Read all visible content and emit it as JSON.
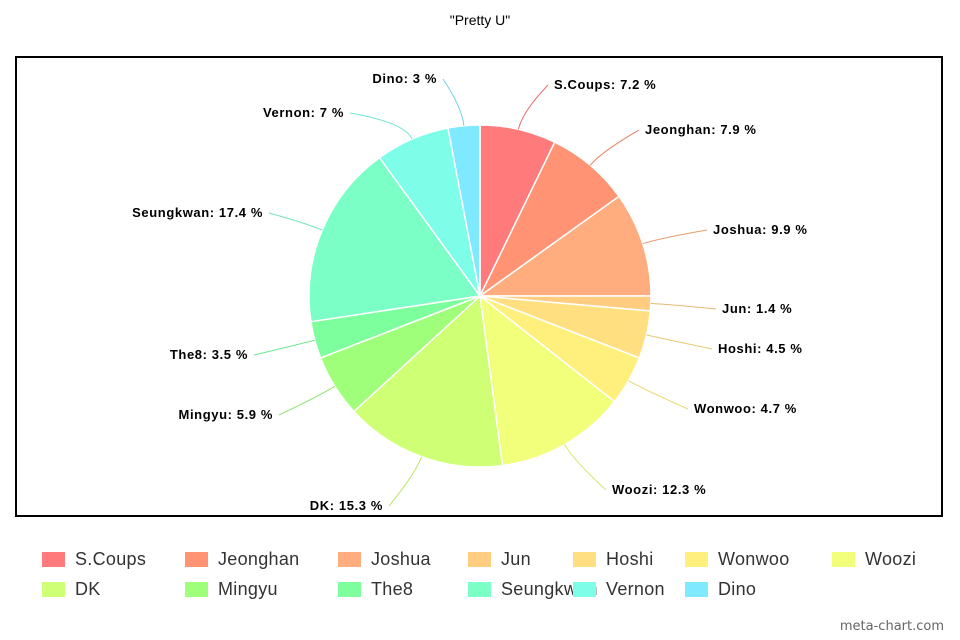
{
  "title": "\"Pretty U\"",
  "watermark": "meta-chart.com",
  "chart_data": {
    "type": "pie",
    "title": "\"Pretty U\"",
    "legend_position": "bottom",
    "label_format": "{name}: {value} %",
    "slices": [
      {
        "name": "S.Coups",
        "value": 7.2,
        "label": "S.Coups: 7.2 %",
        "color": "#ff7b7b"
      },
      {
        "name": "Jeonghan",
        "value": 7.9,
        "label": "Jeonghan: 7.9 %",
        "color": "#ff9373"
      },
      {
        "name": "Joshua",
        "value": 9.9,
        "label": "Joshua: 9.9 %",
        "color": "#ffad7e"
      },
      {
        "name": "Jun",
        "value": 1.4,
        "label": "Jun: 1.4 %",
        "color": "#ffcc80"
      },
      {
        "name": "Hoshi",
        "value": 4.5,
        "label": "Hoshi: 4.5 %",
        "color": "#ffdf80"
      },
      {
        "name": "Wonwoo",
        "value": 4.7,
        "label": "Wonwoo: 4.7 %",
        "color": "#fff07d"
      },
      {
        "name": "Woozi",
        "value": 12.3,
        "label": "Woozi: 12.3 %",
        "color": "#f1ff7b"
      },
      {
        "name": "DK",
        "value": 15.3,
        "label": "DK: 15.3 %",
        "color": "#cfff74"
      },
      {
        "name": "Mingyu",
        "value": 5.9,
        "label": "Mingyu: 5.9 %",
        "color": "#a0ff7a"
      },
      {
        "name": "The8",
        "value": 3.5,
        "label": "The8: 3.5 %",
        "color": "#7eff9e"
      },
      {
        "name": "Seungkwan",
        "value": 17.4,
        "label": "Seungkwan: 17.4 %",
        "color": "#7cffc6"
      },
      {
        "name": "Vernon",
        "value": 7,
        "label": "Vernon: 7 %",
        "color": "#7efde9"
      },
      {
        "name": "Dino",
        "value": 3,
        "label": "Dino: 3 %",
        "color": "#7ee9ff"
      }
    ]
  }
}
